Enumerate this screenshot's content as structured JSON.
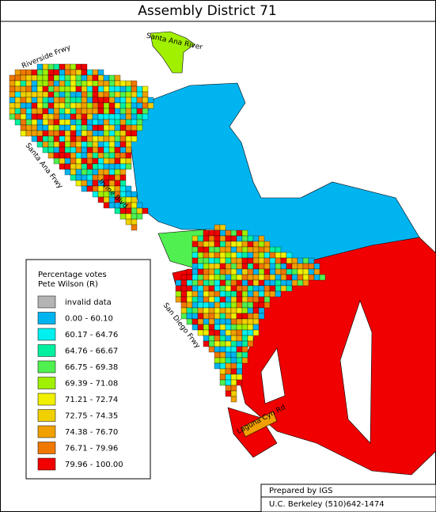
{
  "title": "Assembly District 71",
  "road_labels": [
    "Santa Ana River",
    "Riverside Frwy",
    "Santa Ana Frwy",
    "Irvine Blvd",
    "San Diego Frwy",
    "Laguna Cyn Rd"
  ],
  "legend": {
    "title": [
      "Percentage votes",
      "Pete Wilson (R)"
    ],
    "items": [
      {
        "label": "invalid data",
        "color": "#b4b4b4"
      },
      {
        "label": "0.00 - 60.10",
        "color": "#00b4f0"
      },
      {
        "label": "60.17 - 64.76",
        "color": "#00f0f0"
      },
      {
        "label": "64.76 - 66.67",
        "color": "#00f0a0"
      },
      {
        "label": "66.75 - 69.38",
        "color": "#50f050"
      },
      {
        "label": "69.39 - 71.08",
        "color": "#a0f000"
      },
      {
        "label": "71.21 - 72.74",
        "color": "#f0f000"
      },
      {
        "label": "72.75 - 74.35",
        "color": "#f0d000"
      },
      {
        "label": "74.38 - 76.70",
        "color": "#f0a000"
      },
      {
        "label": "76.71 - 79.96",
        "color": "#f07800"
      },
      {
        "label": "79.96 - 100.00",
        "color": "#f00000"
      }
    ]
  },
  "credits": [
    "Prepared by IGS",
    "U.C. Berkeley (510)642-1474"
  ]
}
